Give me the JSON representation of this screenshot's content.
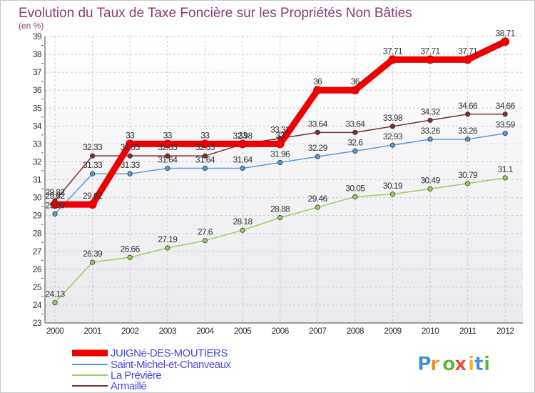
{
  "chart_data": {
    "type": "line",
    "title": "Evolution du Taux de Taxe Foncière sur les Propriétés Non Bâties",
    "ylabel": "(en %)",
    "xlabel": "",
    "ylim": [
      23,
      39
    ],
    "yticks": [
      "23",
      "24",
      "25",
      "26",
      "27",
      "28",
      "29",
      "30",
      "31",
      "32",
      "33",
      "34",
      "35",
      "36",
      "37",
      "38",
      "39"
    ],
    "categories": [
      "2000",
      "2001",
      "2002",
      "2003",
      "2004",
      "2005",
      "2006",
      "2007",
      "2008",
      "2009",
      "2010",
      "2011",
      "2012"
    ],
    "grid": true,
    "series": [
      {
        "name": "JUIGNé-DES-MOUTIERS",
        "color": "#ee0000",
        "values": [
          29.62,
          29.62,
          33,
          33,
          33,
          33,
          33,
          36,
          36,
          37.71,
          37.71,
          37.71,
          38.71
        ],
        "labels": [
          "29.62",
          "29.62",
          "33",
          "33",
          "33",
          "33",
          "33",
          "36",
          "36",
          "37.71",
          "37.71",
          "37.71",
          "38.71"
        ]
      },
      {
        "name": "Saint-Michel-et-Chanveaux",
        "color": "#5b9bd5",
        "values": [
          29.09,
          31.33,
          31.33,
          31.64,
          31.64,
          31.64,
          31.96,
          32.29,
          32.6,
          32.93,
          33.26,
          33.26,
          33.59
        ],
        "labels": [
          "29.09",
          "31.33",
          "31.33",
          "31.64",
          "31.64",
          "31.64",
          "31.96",
          "32.29",
          "32.6",
          "32.93",
          "33.26",
          "33.26",
          "33.59"
        ]
      },
      {
        "name": "La Prévière",
        "color": "#9ccf5e",
        "values": [
          24.13,
          26.39,
          26.66,
          27.19,
          27.6,
          28.18,
          28.88,
          29.46,
          30.05,
          30.19,
          30.49,
          30.79,
          31.1
        ],
        "labels": [
          "24.13",
          "26.39",
          "26.66",
          "27.19",
          "27.6",
          "28.18",
          "28.88",
          "29.46",
          "30.05",
          "30.19",
          "30.49",
          "30.79",
          "31.1"
        ]
      },
      {
        "name": "Armaillé",
        "color": "#7a2e2e",
        "values": [
          29.82,
          32.33,
          32.33,
          32.33,
          32.33,
          32.98,
          33.31,
          33.64,
          33.64,
          33.98,
          34.32,
          34.66,
          34.66
        ],
        "labels": [
          "29.82",
          "32.33",
          "32.33",
          "32.33",
          "32.33",
          "32.98",
          "33.31",
          "33.64",
          "33.64",
          "33.98",
          "34.32",
          "34.66",
          "34.66"
        ]
      }
    ]
  },
  "brand": {
    "text": "Proxiti",
    "letters": [
      "P",
      "r",
      "o",
      "x",
      "i",
      "t",
      "i"
    ]
  }
}
